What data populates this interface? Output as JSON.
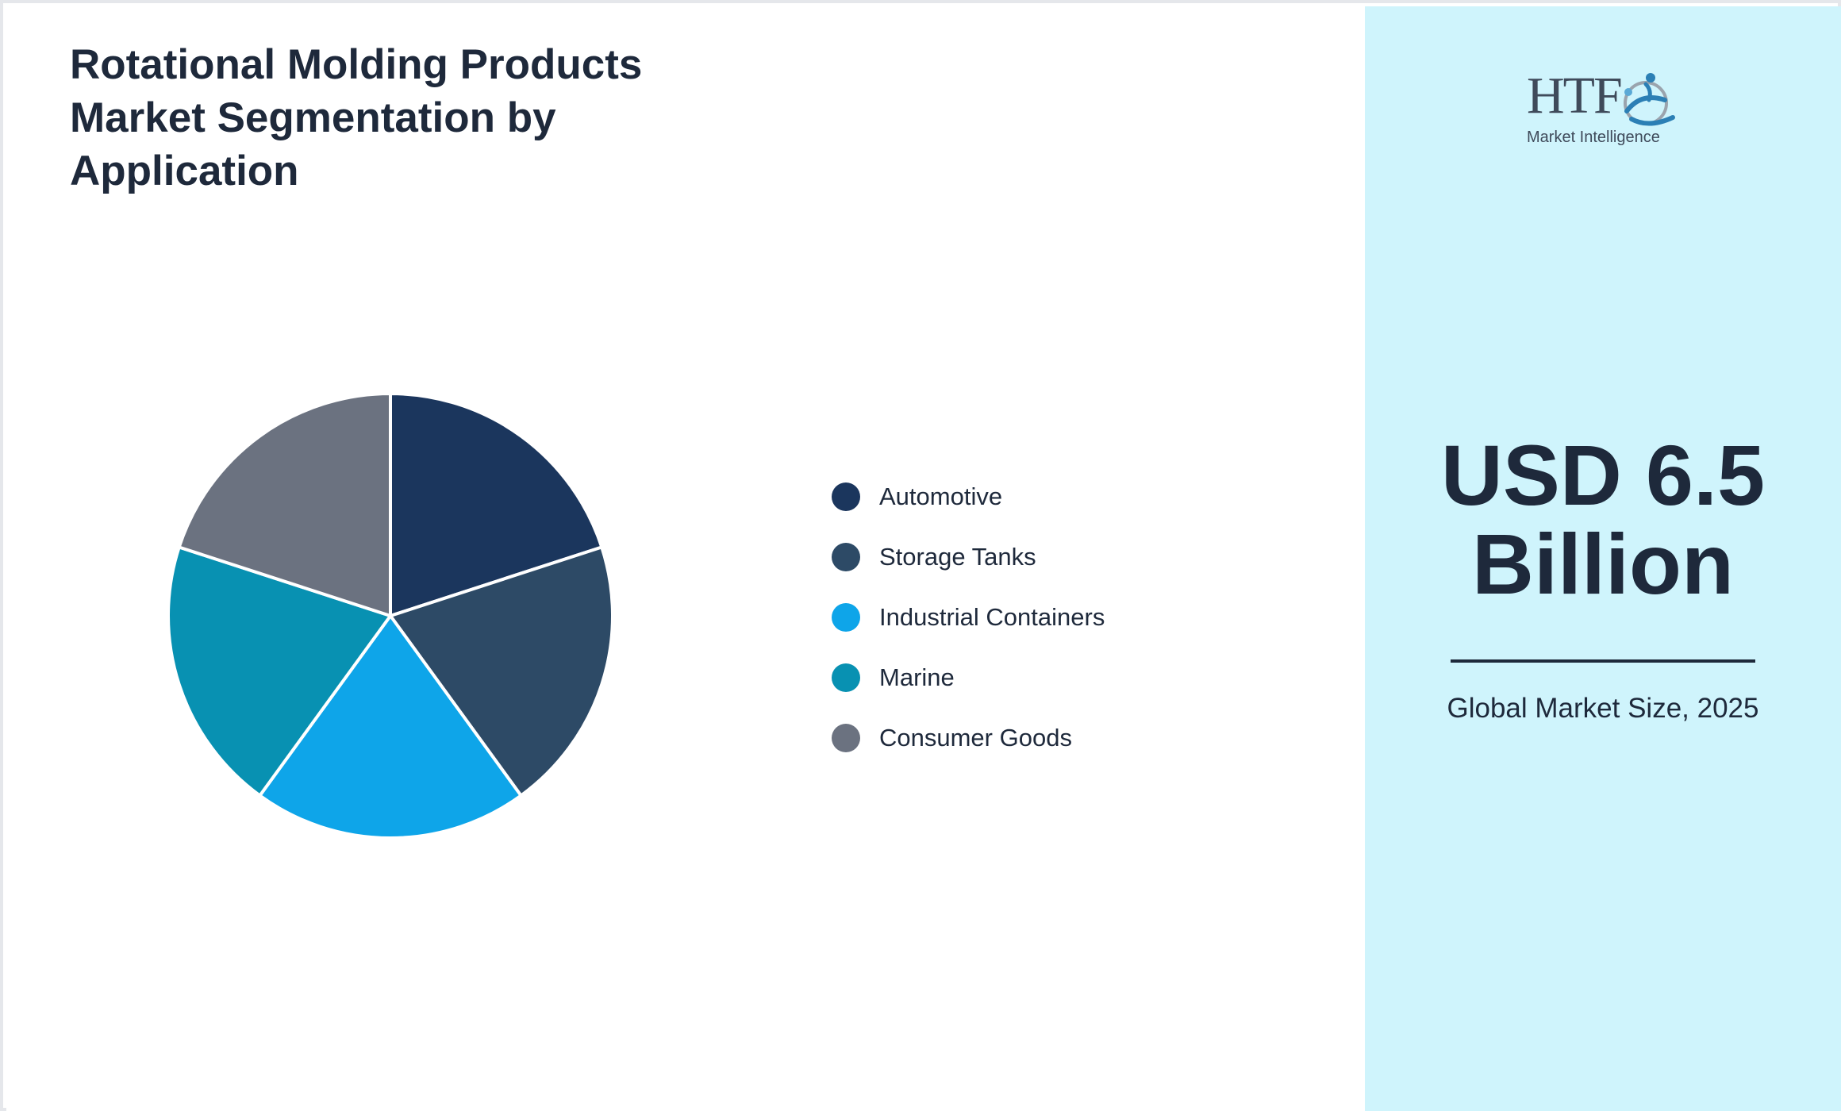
{
  "header": {
    "title": "Rotational Molding Products Market Segmentation by Application"
  },
  "brand": {
    "logo_text": "HTF",
    "logo_subtext": "Market Intelligence",
    "logo_icon": "globe-figures-icon"
  },
  "summary": {
    "value": "USD 6.5 Billion",
    "caption": "Global Market Size, 2025"
  },
  "colors": {
    "panel_background": "#cff4fc",
    "text": "#1e293b"
  },
  "chart_data": {
    "type": "pie",
    "title": "Rotational Molding Products Market Segmentation by Application",
    "categories": [
      "Automotive",
      "Storage Tanks",
      "Industrial Containers",
      "Marine",
      "Consumer Goods"
    ],
    "values": [
      20,
      20,
      20,
      20,
      20
    ],
    "colors": [
      "#1b365d",
      "#2d4a66",
      "#0ea5e9",
      "#0891b2",
      "#6b7280"
    ],
    "legend": "right"
  }
}
